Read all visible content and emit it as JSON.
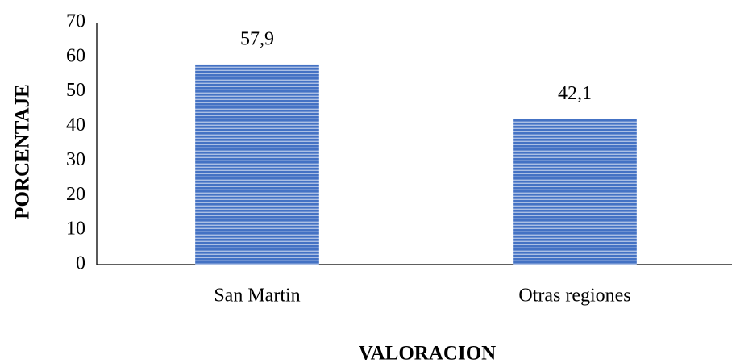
{
  "chart_data": {
    "type": "bar",
    "categories": [
      "San Martin",
      "Otras regiones"
    ],
    "values": [
      57.9,
      42.1
    ],
    "value_labels": [
      "57,9",
      "42,1"
    ],
    "color": "#4472c4",
    "ylim": [
      0,
      70
    ],
    "yticks": [
      0,
      10,
      20,
      30,
      40,
      50,
      60,
      70
    ],
    "grid": false,
    "x_label": "VALORACION",
    "y_label": "PORCENTAJE"
  }
}
